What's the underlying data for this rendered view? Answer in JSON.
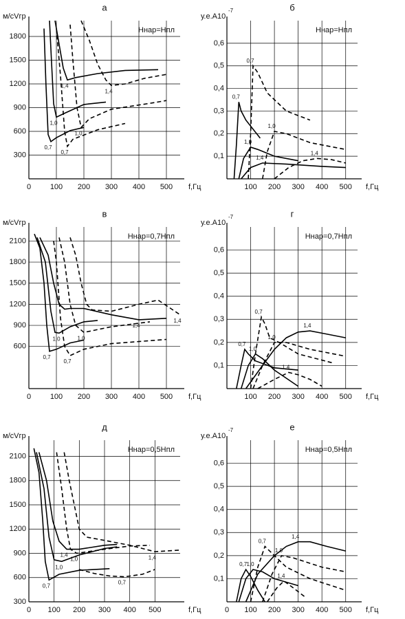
{
  "chart_data": [
    {
      "type": "line",
      "title": "а",
      "annotation": "Hнар=Hпл",
      "ylabel": "м/сVгр",
      "xlabel": "f,Гц",
      "color": "#000",
      "grid": true,
      "xlim": [
        0,
        550
      ],
      "ylim": [
        0,
        2000
      ],
      "xticks": [
        0,
        100,
        200,
        300,
        400,
        500
      ],
      "yticks": [
        300,
        600,
        900,
        1200,
        1500,
        1800
      ],
      "series": [
        {
          "name": "0,7",
          "dash": false,
          "x": [
            55,
            62,
            70,
            80,
            100,
            150,
            200
          ],
          "values": [
            1900,
            1200,
            560,
            470,
            520,
            610,
            650
          ]
        },
        {
          "name": "0,7",
          "dash": true,
          "x": [
            100,
            115,
            130,
            140,
            160,
            250,
            350
          ],
          "values": [
            1900,
            1300,
            600,
            410,
            500,
            620,
            700
          ]
        },
        {
          "name": "1,0",
          "dash": false,
          "x": [
            75,
            82,
            90,
            100,
            130,
            200,
            280
          ],
          "values": [
            2000,
            1500,
            950,
            780,
            830,
            940,
            970
          ]
        },
        {
          "name": "1,0",
          "dash": true,
          "x": [
            150,
            160,
            175,
            190,
            220,
            300,
            450,
            500
          ],
          "values": [
            1950,
            1500,
            900,
            650,
            760,
            880,
            960,
            990
          ]
        },
        {
          "name": "1,4",
          "dash": false,
          "x": [
            95,
            110,
            125,
            140,
            170,
            250,
            350,
            470
          ],
          "values": [
            2000,
            1700,
            1400,
            1250,
            1280,
            1330,
            1370,
            1380
          ]
        },
        {
          "name": "1,4",
          "dash": true,
          "x": [
            190,
            220,
            250,
            280,
            300,
            350,
            420,
            500
          ],
          "values": [
            2000,
            1750,
            1450,
            1250,
            1180,
            1200,
            1270,
            1320
          ]
        }
      ]
    },
    {
      "type": "line",
      "title": "б",
      "annotation": "Hнар=Hпл",
      "ylabel": "у.е.А10",
      "ylabel_sup": "-7",
      "xlabel": "f,Гц",
      "color": "#000",
      "grid": true,
      "xlim": [
        0,
        550
      ],
      "ylim": [
        0,
        0.7
      ],
      "xticks": [
        100,
        200,
        300,
        400,
        500
      ],
      "yticks": [
        {
          "value": 0.1,
          "label": "0,1"
        },
        {
          "value": 0.2,
          "label": "0,2"
        },
        {
          "value": 0.3,
          "label": "0,3"
        },
        {
          "value": 0.4,
          "label": "0,4"
        },
        {
          "value": 0.5,
          "label": "0,5"
        },
        {
          "value": 0.6,
          "label": "0,6"
        }
      ],
      "series": [
        {
          "name": "0,7",
          "dash": false,
          "x": [
            30,
            40,
            50,
            60,
            80,
            110,
            140
          ],
          "values": [
            0,
            0.15,
            0.34,
            0.3,
            0.26,
            0.22,
            0.18
          ]
        },
        {
          "name": "0,7",
          "dash": true,
          "x": [
            90,
            100,
            110,
            130,
            170,
            250,
            350
          ],
          "values": [
            0,
            0.2,
            0.5,
            0.47,
            0.38,
            0.3,
            0.26
          ]
        },
        {
          "name": "1,0",
          "dash": false,
          "x": [
            50,
            70,
            100,
            130,
            200,
            300
          ],
          "values": [
            0,
            0.09,
            0.14,
            0.13,
            0.1,
            0.08
          ]
        },
        {
          "name": "1,0",
          "dash": true,
          "x": [
            150,
            170,
            200,
            250,
            350,
            500
          ],
          "values": [
            0,
            0.12,
            0.21,
            0.2,
            0.16,
            0.13
          ]
        },
        {
          "name": "1,4",
          "dash": false,
          "x": [
            60,
            100,
            150,
            250,
            400,
            500
          ],
          "values": [
            0,
            0.05,
            0.07,
            0.065,
            0.055,
            0.05
          ]
        },
        {
          "name": "1,4",
          "dash": true,
          "x": [
            200,
            260,
            320,
            380,
            440,
            500
          ],
          "values": [
            0,
            0.05,
            0.08,
            0.09,
            0.085,
            0.07
          ]
        }
      ]
    },
    {
      "type": "line",
      "title": "в",
      "annotation": "Hнар=0,7Hпл",
      "ylabel": "м/сVгр",
      "xlabel": "f,Гц",
      "color": "#000",
      "grid": true,
      "xlim": [
        0,
        550
      ],
      "ylim": [
        0,
        2300
      ],
      "xticks": [
        0,
        100,
        200,
        300,
        400,
        500
      ],
      "yticks": [
        600,
        900,
        1200,
        1500,
        1800,
        2100
      ],
      "series": [
        {
          "name": "0,7",
          "dash": false,
          "x": [
            20,
            40,
            55,
            65,
            75,
            100,
            150,
            200
          ],
          "values": [
            2200,
            2000,
            1500,
            900,
            530,
            560,
            650,
            690
          ]
        },
        {
          "name": "0,7",
          "dash": true,
          "x": [
            90,
            100,
            115,
            130,
            150,
            200,
            300,
            500
          ],
          "values": [
            2100,
            1800,
            1000,
            600,
            470,
            560,
            640,
            700
          ]
        },
        {
          "name": "1,0",
          "dash": false,
          "x": [
            30,
            60,
            80,
            95,
            110,
            150,
            200,
            250
          ],
          "values": [
            2150,
            1800,
            1100,
            800,
            790,
            880,
            950,
            970
          ]
        },
        {
          "name": "1,0",
          "dash": true,
          "x": [
            110,
            130,
            150,
            170,
            200,
            300,
            440
          ],
          "values": [
            2150,
            1800,
            1200,
            900,
            800,
            880,
            950
          ]
        },
        {
          "name": "1,4",
          "dash": false,
          "x": [
            40,
            70,
            90,
            110,
            130,
            150,
            200,
            300,
            400,
            500
          ],
          "values": [
            2150,
            1900,
            1500,
            1200,
            1130,
            1140,
            1140,
            1050,
            980,
            1000
          ]
        },
        {
          "name": "1,4",
          "dash": true,
          "x": [
            150,
            170,
            190,
            210,
            230,
            300,
            400,
            470,
            550
          ],
          "values": [
            2150,
            1900,
            1500,
            1200,
            1120,
            1100,
            1200,
            1260,
            1050
          ]
        }
      ]
    },
    {
      "type": "line",
      "title": "г",
      "annotation": "Hнар=0,7Hпл",
      "ylabel": "у.е.А10",
      "ylabel_sup": "-7",
      "xlabel": "f,Гц",
      "color": "#000",
      "grid": true,
      "xlim": [
        0,
        550
      ],
      "ylim": [
        0,
        0.7
      ],
      "xticks": [
        100,
        200,
        300,
        400,
        500
      ],
      "yticks": [
        {
          "value": 0.1,
          "label": "0,1"
        },
        {
          "value": 0.2,
          "label": "0,2"
        },
        {
          "value": 0.3,
          "label": "0,3"
        },
        {
          "value": 0.4,
          "label": "0,4"
        },
        {
          "value": 0.5,
          "label": "0,5"
        },
        {
          "value": 0.6,
          "label": "0,6"
        }
      ],
      "series": [
        {
          "name": "0,7",
          "dash": false,
          "x": [
            40,
            60,
            75,
            90,
            120,
            200,
            300
          ],
          "values": [
            0,
            0.1,
            0.17,
            0.15,
            0.12,
            0.09,
            0.08
          ]
        },
        {
          "name": "0,7",
          "dash": true,
          "x": [
            100,
            120,
            145,
            160,
            180,
            220,
            300,
            450
          ],
          "values": [
            0,
            0.15,
            0.31,
            0.28,
            0.22,
            0.2,
            0.15,
            0.11
          ]
        },
        {
          "name": "1,0",
          "dash": false,
          "x": [
            60,
            90,
            120,
            150,
            200,
            300
          ],
          "values": [
            0,
            0.1,
            0.15,
            0.13,
            0.08,
            0.01
          ]
        },
        {
          "name": "1,0",
          "dash": true,
          "x": [
            110,
            150,
            200,
            250,
            350,
            500
          ],
          "values": [
            0,
            0.1,
            0.2,
            0.2,
            0.17,
            0.14
          ]
        },
        {
          "name": "1,4",
          "dash": false,
          "x": [
            80,
            150,
            200,
            250,
            300,
            350,
            400,
            500
          ],
          "values": [
            0,
            0.1,
            0.17,
            0.22,
            0.245,
            0.25,
            0.24,
            0.22
          ]
        },
        {
          "name": "1,4",
          "dash": true,
          "x": [
            130,
            200,
            260,
            300,
            350,
            400
          ],
          "values": [
            0,
            0.04,
            0.07,
            0.06,
            0.04,
            0.01
          ]
        }
      ]
    },
    {
      "type": "line",
      "title": "д",
      "annotation": "Hнар=0,5Hпл",
      "ylabel": "м/сVгр",
      "xlabel": "f,Гц",
      "color": "#000",
      "grid": true,
      "xlim": [
        0,
        600
      ],
      "ylim": [
        300,
        2300
      ],
      "xticks": [
        0,
        100,
        200,
        300,
        400,
        500
      ],
      "yticks": [
        300,
        600,
        900,
        1200,
        1500,
        1800,
        2100
      ],
      "series": [
        {
          "name": "0,7",
          "dash": false,
          "x": [
            20,
            40,
            55,
            65,
            80,
            120,
            200,
            320
          ],
          "values": [
            2200,
            1900,
            1300,
            800,
            570,
            640,
            690,
            710
          ]
        },
        {
          "name": "0,7",
          "dash": true,
          "x": [
            200,
            260,
            320,
            380,
            450,
            500
          ],
          "values": [
            700,
            650,
            620,
            610,
            640,
            700
          ]
        },
        {
          "name": "1,0",
          "dash": false,
          "x": [
            30,
            60,
            80,
            100,
            130,
            200,
            300,
            350
          ],
          "values": [
            2150,
            1700,
            1100,
            820,
            800,
            880,
            960,
            980
          ]
        },
        {
          "name": "1,0",
          "dash": true,
          "x": [
            110,
            130,
            150,
            165,
            190,
            300,
            400,
            480
          ],
          "values": [
            2150,
            1700,
            1200,
            950,
            900,
            950,
            990,
            1000
          ]
        },
        {
          "name": "1,4",
          "dash": false,
          "x": [
            40,
            70,
            95,
            120,
            150,
            200,
            300,
            350
          ],
          "values": [
            2150,
            1800,
            1300,
            1050,
            950,
            950,
            1000,
            1010
          ]
        },
        {
          "name": "1,4",
          "dash": true,
          "x": [
            140,
            160,
            180,
            200,
            230,
            300,
            400,
            500,
            600
          ],
          "values": [
            2150,
            1800,
            1500,
            1200,
            1100,
            1060,
            1000,
            920,
            940
          ]
        }
      ]
    },
    {
      "type": "line",
      "title": "е",
      "annotation": "Hнар=0,5Hпл",
      "ylabel": "у.е.А10",
      "ylabel_sup": "-7",
      "xlabel": "f,Гц",
      "color": "#000",
      "grid": true,
      "xlim": [
        0,
        550
      ],
      "ylim": [
        0,
        0.7
      ],
      "xticks": [
        0,
        100,
        200,
        300,
        400,
        500
      ],
      "yticks": [
        {
          "value": 0.1,
          "label": "0,1"
        },
        {
          "value": 0.2,
          "label": "0,2"
        },
        {
          "value": 0.3,
          "label": "0,3"
        },
        {
          "value": 0.4,
          "label": "0,4"
        },
        {
          "value": 0.5,
          "label": "0,5"
        },
        {
          "value": 0.6,
          "label": "0,6"
        }
      ],
      "series": [
        {
          "name": "0,7",
          "dash": false,
          "x": [
            40,
            60,
            80,
            100,
            130,
            160
          ],
          "values": [
            0,
            0.1,
            0.14,
            0.11,
            0.05,
            0
          ]
        },
        {
          "name": "0,7",
          "dash": true,
          "x": [
            100,
            130,
            160,
            190,
            250,
            350,
            500
          ],
          "values": [
            0,
            0.15,
            0.24,
            0.21,
            0.15,
            0.1,
            0.05
          ]
        },
        {
          "name": "1,0",
          "dash": false,
          "x": [
            50,
            80,
            110,
            150,
            200,
            300
          ],
          "values": [
            0,
            0.1,
            0.14,
            0.13,
            0.1,
            0.07
          ]
        },
        {
          "name": "1,0",
          "dash": true,
          "x": [
            150,
            190,
            230,
            280,
            400,
            500
          ],
          "values": [
            0,
            0.12,
            0.2,
            0.19,
            0.15,
            0.13
          ]
        },
        {
          "name": "1,4",
          "dash": false,
          "x": [
            80,
            130,
            200,
            250,
            300,
            350,
            420,
            500
          ],
          "values": [
            0,
            0.12,
            0.2,
            0.24,
            0.26,
            0.26,
            0.24,
            0.22
          ]
        },
        {
          "name": "1,4",
          "dash": true,
          "x": [
            170,
            210,
            240,
            280,
            330
          ],
          "values": [
            0,
            0.06,
            0.09,
            0.06,
            0.02
          ]
        }
      ]
    }
  ]
}
